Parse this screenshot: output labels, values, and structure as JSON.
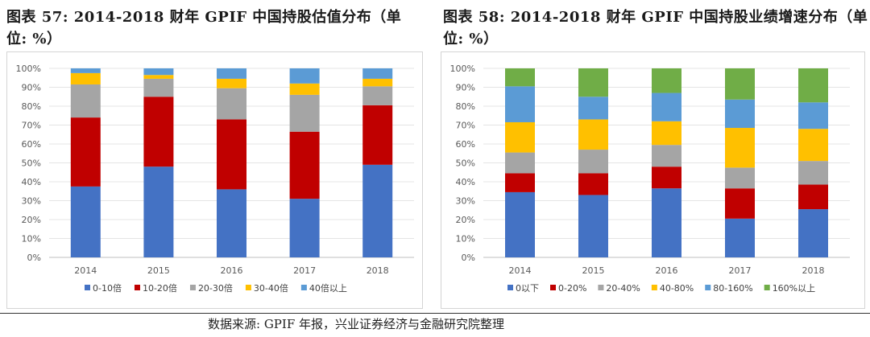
{
  "figures": [
    {
      "title_line1": "图表 57: 2014-2018 财年 GPIF 中国持股估值分布（单",
      "title_line2": "位: %）"
    },
    {
      "title_line1": "图表 58: 2014-2018 财年 GPIF 中国持股业绩增速分布（单",
      "title_line2": "位: %）"
    }
  ],
  "source": "数据来源: GPIF 年报，兴业证券经济与金融研究院整理",
  "chart_data": [
    {
      "type": "bar",
      "stacked": true,
      "percent": true,
      "categories": [
        "2014",
        "2015",
        "2016",
        "2017",
        "2018"
      ],
      "yticks": [
        "0%",
        "10%",
        "20%",
        "30%",
        "40%",
        "50%",
        "60%",
        "70%",
        "80%",
        "90%",
        "100%"
      ],
      "ylim": [
        0,
        100
      ],
      "grid": true,
      "legend_position": "bottom",
      "series": [
        {
          "name": "0-10倍",
          "color": "#4472C4",
          "values": [
            37.5,
            48,
            36,
            31,
            49
          ]
        },
        {
          "name": "10-20倍",
          "color": "#C00000",
          "values": [
            36.5,
            37,
            37,
            35.5,
            31.5
          ]
        },
        {
          "name": "20-30倍",
          "color": "#A5A5A5",
          "values": [
            17.5,
            9.5,
            16.5,
            19.5,
            10
          ]
        },
        {
          "name": "30-40倍",
          "color": "#FFC000",
          "values": [
            6,
            2,
            5,
            6,
            4
          ]
        },
        {
          "name": "40倍以上",
          "color": "#5B9BD5",
          "values": [
            2.5,
            3.5,
            5.5,
            8,
            5.5
          ]
        }
      ]
    },
    {
      "type": "bar",
      "stacked": true,
      "percent": true,
      "categories": [
        "2014",
        "2015",
        "2016",
        "2017",
        "2018"
      ],
      "yticks": [
        "0%",
        "10%",
        "20%",
        "30%",
        "40%",
        "50%",
        "60%",
        "70%",
        "80%",
        "90%",
        "100%"
      ],
      "ylim": [
        0,
        100
      ],
      "grid": true,
      "legend_position": "bottom",
      "series": [
        {
          "name": "0以下",
          "color": "#4472C4",
          "values": [
            34.5,
            33,
            36.5,
            20.5,
            25.5
          ]
        },
        {
          "name": "0-20%",
          "color": "#C00000",
          "values": [
            10,
            11.5,
            11.5,
            16,
            13
          ]
        },
        {
          "name": "20-40%",
          "color": "#A5A5A5",
          "values": [
            11,
            12.5,
            11.5,
            11,
            12.5
          ]
        },
        {
          "name": "40-80%",
          "color": "#FFC000",
          "values": [
            16,
            16,
            12.5,
            21,
            17
          ]
        },
        {
          "name": "80-160%",
          "color": "#5B9BD5",
          "values": [
            19,
            12,
            15,
            15,
            14
          ]
        },
        {
          "name": "160%以上",
          "color": "#70AD47",
          "values": [
            9.5,
            15,
            13,
            16.5,
            18
          ]
        }
      ]
    }
  ]
}
